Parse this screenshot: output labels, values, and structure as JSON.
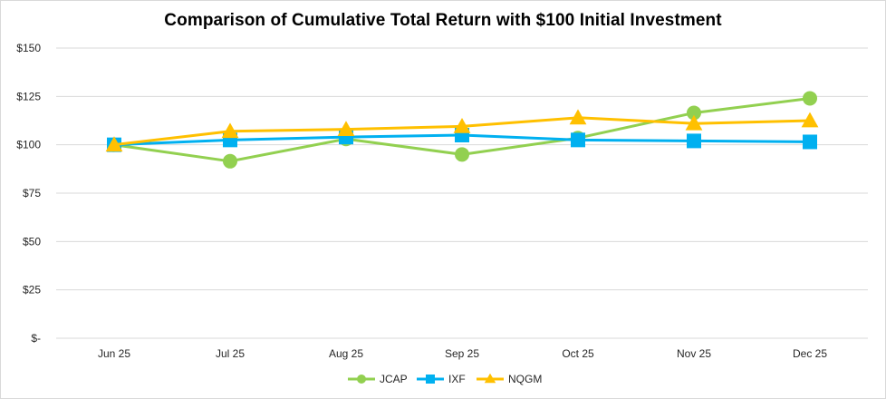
{
  "chart_data": {
    "type": "line",
    "title": "Comparison of Cumulative Total Return with $100 Initial Investment",
    "xlabel": "",
    "ylabel": "",
    "categories": [
      "Jun 25",
      "Jul 25",
      "Aug 25",
      "Sep 25",
      "Oct 25",
      "Nov 25",
      "Dec 25"
    ],
    "ylim": [
      0,
      150
    ],
    "yticks": [
      0,
      25,
      50,
      75,
      100,
      125,
      150
    ],
    "ytick_labels": [
      "$-",
      "$25",
      "$50",
      "$75",
      "$100",
      "$125",
      "$150"
    ],
    "grid": true,
    "legend_position": "bottom",
    "series": [
      {
        "name": "JCAP",
        "marker": "circle",
        "color": "#92D050",
        "values": [
          100,
          91.5,
          103,
          95,
          103.5,
          116.5,
          124
        ]
      },
      {
        "name": "IXF",
        "marker": "square",
        "color": "#00B0F0",
        "values": [
          100,
          102.5,
          104,
          105,
          102.5,
          102,
          101.5
        ]
      },
      {
        "name": "NQGM",
        "marker": "triangle",
        "color": "#FFC000",
        "values": [
          100,
          107,
          108,
          109.5,
          114,
          111,
          112.5
        ]
      }
    ]
  }
}
